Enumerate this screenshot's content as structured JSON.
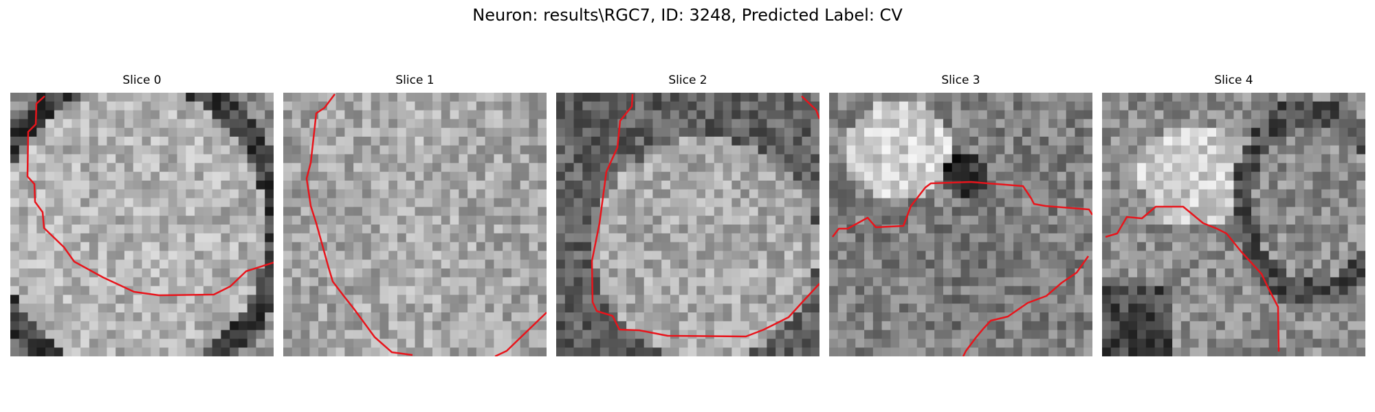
{
  "figure": {
    "title": "Neuron: results\\RGC7, ID: 3248, Predicted Label: CV"
  },
  "panels": [
    {
      "title": "Slice 0",
      "seed": 11,
      "shade": "ring"
    },
    {
      "title": "Slice 1",
      "seed": 23,
      "shade": "flat"
    },
    {
      "title": "Slice 2",
      "seed": 37,
      "shade": "darkrim"
    },
    {
      "title": "Slice 3",
      "seed": 51,
      "shade": "blobs"
    },
    {
      "title": "Slice 4",
      "seed": 67,
      "shade": "split"
    }
  ],
  "contour_color": "#e8141b"
}
